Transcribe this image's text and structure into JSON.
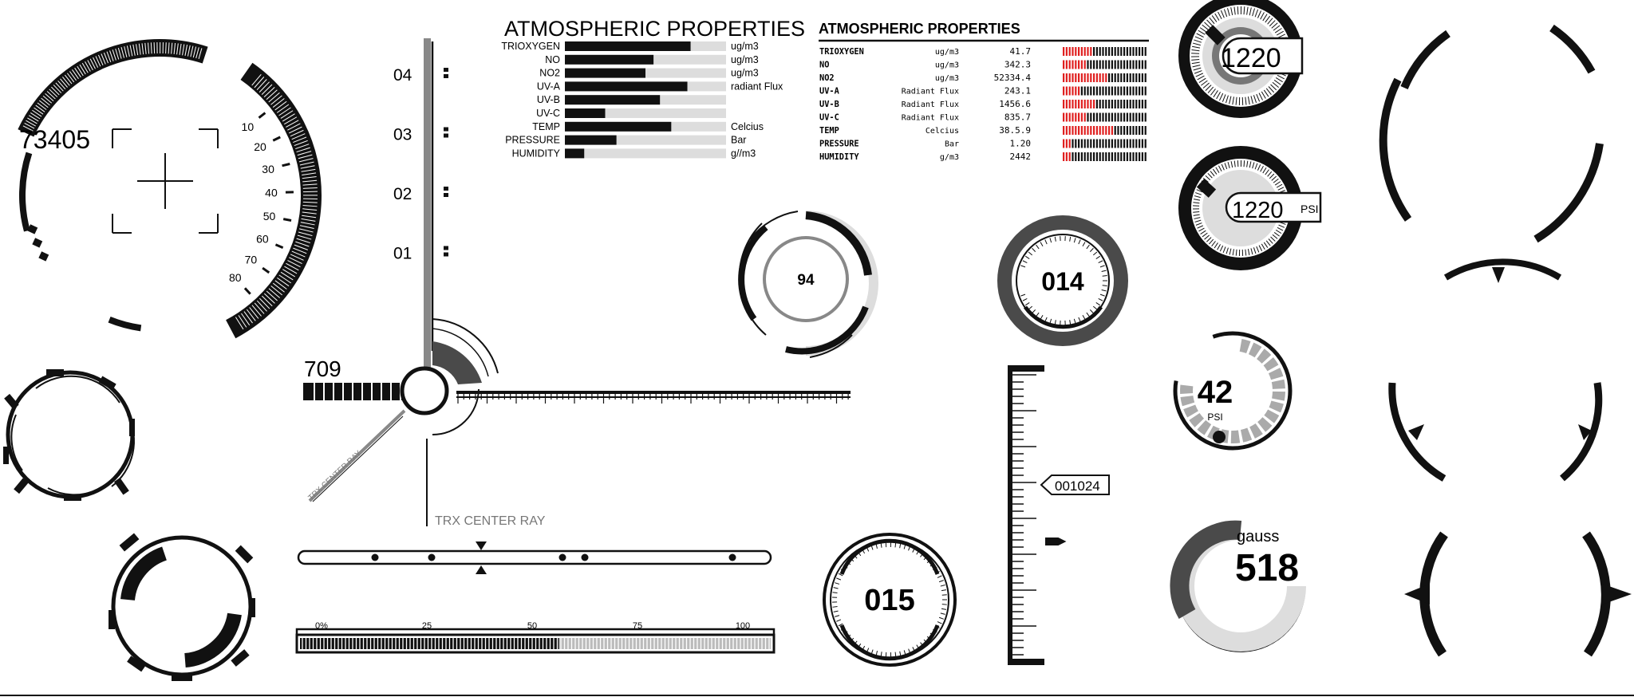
{
  "colors": {
    "ink": "#111111",
    "mid_gray": "#888888",
    "light_gray": "#dddddd",
    "dark_gray": "#4a4a4a",
    "alert_red": "#e02020"
  },
  "left_scope": {
    "readout": "73405",
    "scale_labels": [
      "10",
      "20",
      "30",
      "40",
      "50",
      "60",
      "70",
      "80"
    ]
  },
  "axis_widget": {
    "level_labels": [
      "04",
      "03",
      "02",
      "01"
    ],
    "readout": "709",
    "diagonal_label": "TRX CENTER RAY",
    "main_label": "TRX CENTER RAY"
  },
  "progress_bar": {
    "labels": [
      "0%",
      "25",
      "50",
      "75",
      "100"
    ],
    "fill_fraction": 0.55
  },
  "atmos_table_1": {
    "title": "ATMOSPHERIC PROPERTIES",
    "rows": [
      {
        "name": "TRIOXYGEN",
        "unit": "ug/m3",
        "level": 0.78
      },
      {
        "name": "NO",
        "unit": "ug/m3",
        "level": 0.55
      },
      {
        "name": "NO2",
        "unit": "ug/m3",
        "level": 0.5
      },
      {
        "name": "UV-A",
        "unit": "radiant Flux",
        "level": 0.76
      },
      {
        "name": "UV-B",
        "unit": "",
        "level": 0.59
      },
      {
        "name": "UV-C",
        "unit": "",
        "level": 0.25
      },
      {
        "name": "TEMP",
        "unit": "Celcius",
        "level": 0.66
      },
      {
        "name": "PRESSURE",
        "unit": "Bar",
        "level": 0.32
      },
      {
        "name": "HUMIDITY",
        "unit": "g//m3",
        "level": 0.12
      }
    ]
  },
  "atmos_table_2": {
    "title": "ATMOSPHERIC PROPERTIES",
    "rows": [
      {
        "name": "TRIOXYGEN",
        "unit": "ug/m3",
        "value": "41.7",
        "level": 0.35
      },
      {
        "name": "NO",
        "unit": "ug/m3",
        "value": "342.3",
        "level": 0.3
      },
      {
        "name": "NO2",
        "unit": "ug/m3",
        "value": "52334.4",
        "level": 0.55
      },
      {
        "name": "UV-A",
        "unit": "Radiant Flux",
        "level": 0.2,
        "value": "243.1"
      },
      {
        "name": "UV-B",
        "unit": "Radiant Flux",
        "value": "1456.6",
        "level": 0.4
      },
      {
        "name": "UV-C",
        "unit": "Radiant Flux",
        "value": "835.7",
        "level": 0.3
      },
      {
        "name": "TEMP",
        "unit": "Celcius",
        "value": "38.5.9",
        "level": 0.6
      },
      {
        "name": "PRESSURE",
        "unit": "Bar",
        "value": "1.20",
        "level": 0.12
      },
      {
        "name": "HUMIDITY",
        "unit": "g/m3",
        "value": "2442",
        "level": 0.12
      }
    ]
  },
  "gauges": {
    "ring_94": "94",
    "dial_014": "014",
    "dial_015": "015",
    "knob_1220": "1220",
    "knob_1220_psi": "1220",
    "knob_1220_psi_unit": "PSI",
    "psi_42": "42",
    "psi_42_unit": "PSI",
    "gauss_value": "518",
    "gauss_unit": "gauss"
  },
  "vertical_ruler": {
    "pointer_label": "001024"
  }
}
